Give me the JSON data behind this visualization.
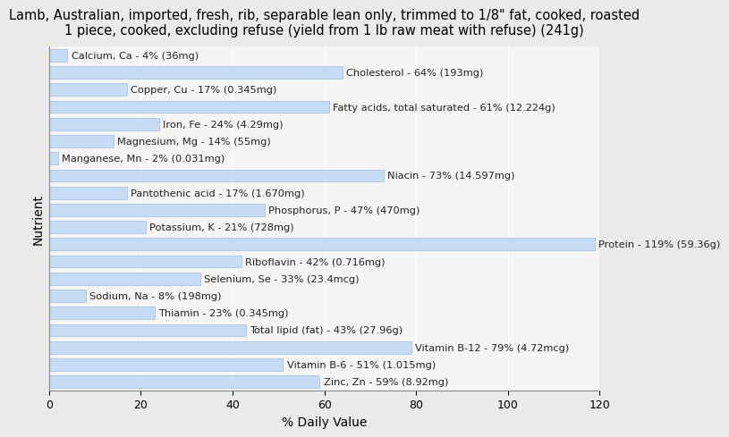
{
  "title": "Lamb, Australian, imported, fresh, rib, separable lean only, trimmed to 1/8\" fat, cooked, roasted\n1 piece, cooked, excluding refuse (yield from 1 lb raw meat with refuse) (241g)",
  "xlabel": "% Daily Value",
  "ylabel": "Nutrient",
  "nutrients": [
    "Calcium, Ca - 4% (36mg)",
    "Cholesterol - 64% (193mg)",
    "Copper, Cu - 17% (0.345mg)",
    "Fatty acids, total saturated - 61% (12.224g)",
    "Iron, Fe - 24% (4.29mg)",
    "Magnesium, Mg - 14% (55mg)",
    "Manganese, Mn - 2% (0.031mg)",
    "Niacin - 73% (14.597mg)",
    "Pantothenic acid - 17% (1.670mg)",
    "Phosphorus, P - 47% (470mg)",
    "Potassium, K - 21% (728mg)",
    "Protein - 119% (59.36g)",
    "Riboflavin - 42% (0.716mg)",
    "Selenium, Se - 33% (23.4mcg)",
    "Sodium, Na - 8% (198mg)",
    "Thiamin - 23% (0.345mg)",
    "Total lipid (fat) - 43% (27.96g)",
    "Vitamin B-12 - 79% (4.72mcg)",
    "Vitamin B-6 - 51% (1.015mg)",
    "Zinc, Zn - 59% (8.92mg)"
  ],
  "values": [
    4,
    64,
    17,
    61,
    24,
    14,
    2,
    73,
    17,
    47,
    21,
    119,
    42,
    33,
    8,
    23,
    43,
    79,
    51,
    59
  ],
  "bar_color": "#c6dcf5",
  "bar_edge_color": "#9bbce0",
  "background_color": "#eaeaea",
  "plot_background_color": "#f5f5f5",
  "text_color": "#222222",
  "xlim": [
    0,
    120
  ],
  "xticks": [
    0,
    20,
    40,
    60,
    80,
    100,
    120
  ],
  "title_fontsize": 10.5,
  "axis_label_fontsize": 10,
  "tick_fontsize": 9,
  "bar_label_fontsize": 8.2,
  "bar_height": 0.72
}
